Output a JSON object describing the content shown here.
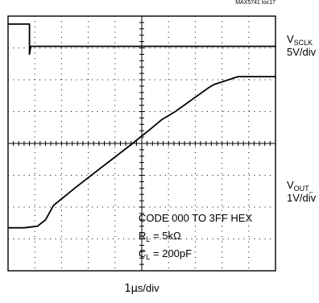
{
  "chart_data": {
    "type": "line",
    "title": "",
    "figure_ref": "MAX5741 toc17",
    "grid": true,
    "divisions": {
      "x": 10,
      "y": 8
    },
    "xlabel": "1µs/div",
    "xlabel_parts": {
      "mu": "1µ",
      "rest": "s/div"
    },
    "ylabel": "",
    "x_unit": "div",
    "y_unit": "div",
    "xlim": [
      0,
      10
    ],
    "ylim": [
      0,
      8
    ],
    "series": [
      {
        "name": "VSCLK",
        "label_main": "V",
        "label_sub": "SCLK",
        "scale": "5V/div",
        "points": [
          [
            0,
            7.75
          ],
          [
            0.8,
            7.75
          ],
          [
            0.8,
            6.8
          ],
          [
            0.85,
            7.05
          ],
          [
            10,
            7.05
          ]
        ]
      },
      {
        "name": "VOUT_",
        "label_main": "V",
        "label_sub": "OUT_",
        "scale": "1V/div",
        "points": [
          [
            0,
            1.35
          ],
          [
            0.6,
            1.35
          ],
          [
            1.1,
            1.4
          ],
          [
            1.4,
            1.6
          ],
          [
            1.7,
            2.05
          ],
          [
            2.5,
            2.6
          ],
          [
            3.5,
            3.25
          ],
          [
            4.5,
            3.9
          ],
          [
            5.25,
            4.4
          ],
          [
            5.75,
            4.75
          ],
          [
            6.25,
            5.0
          ],
          [
            7.0,
            5.45
          ],
          [
            7.5,
            5.75
          ],
          [
            7.7,
            5.85
          ],
          [
            8.6,
            6.1
          ],
          [
            10,
            6.1
          ]
        ]
      }
    ],
    "annotations": [
      {
        "text": "CODE 000 TO 3FF HEX"
      },
      {
        "main": "R",
        "sub": "L",
        "rest": " = 5kΩ"
      },
      {
        "main": "C",
        "sub": "L",
        "rest": " = 200pF"
      }
    ]
  },
  "colors": {
    "trace": "#000000",
    "grid": "#000000",
    "background": "#ffffff"
  }
}
